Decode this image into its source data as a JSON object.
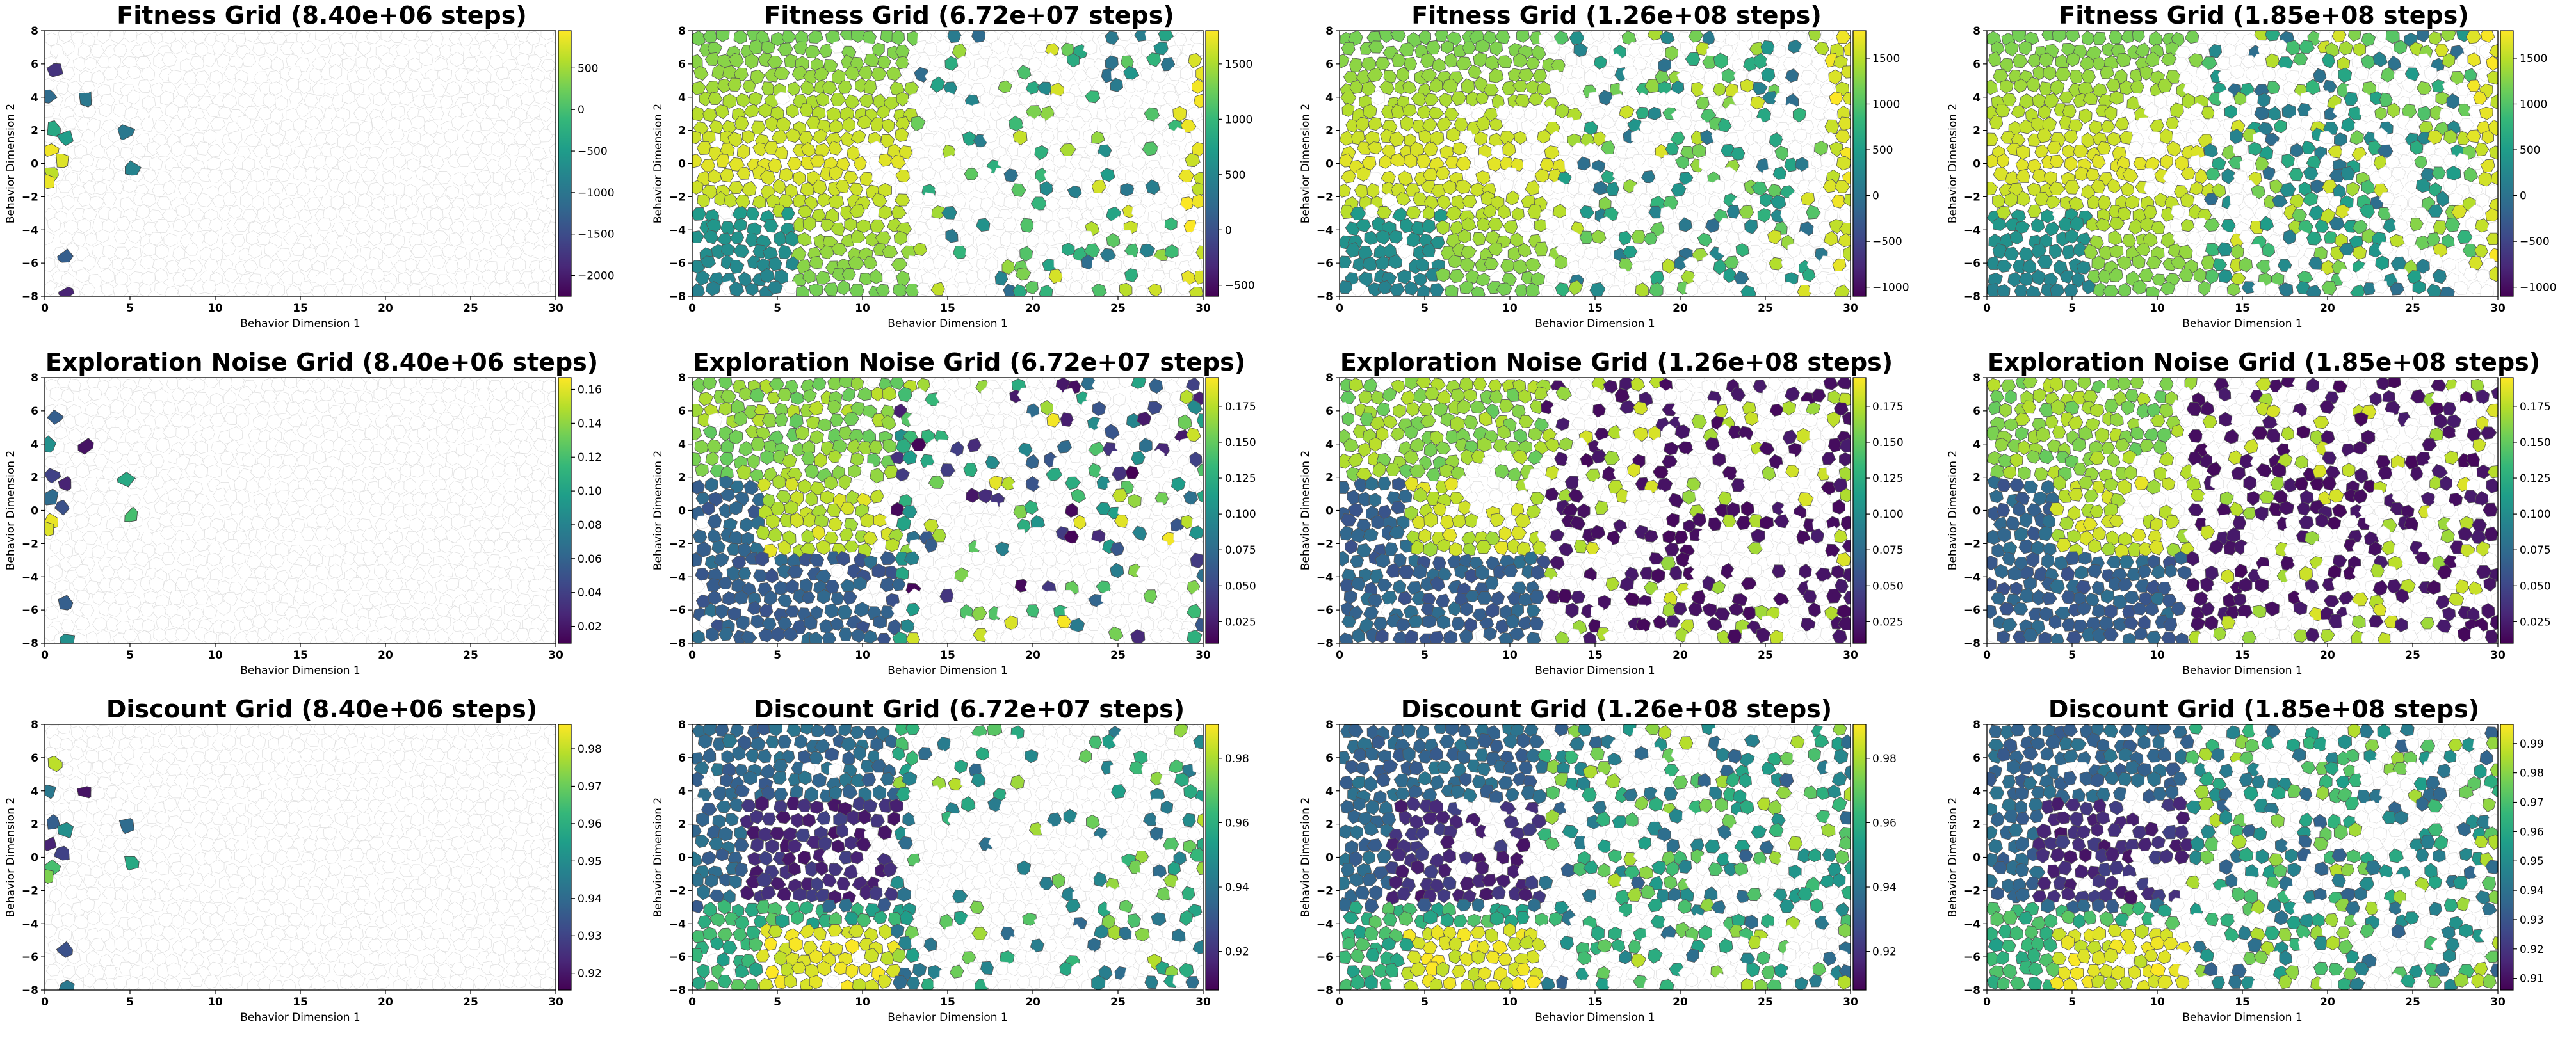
{
  "figure": {
    "row_names": [
      "Fitness Grid",
      "Exploration Noise Grid",
      "Discount Grid"
    ],
    "column_steps": [
      "8.40e+06",
      "6.72e+07",
      "1.26e+08",
      "1.85e+08"
    ]
  },
  "chart_data": [
    {
      "type": "heatmap",
      "title": "Fitness Grid (8.40e+06 steps)",
      "xlabel": "Behavior Dimension 1",
      "ylabel": "Behavior Dimension 2",
      "xlim": [
        0,
        30
      ],
      "ylim": [
        -8,
        8
      ],
      "xticks": [
        "0",
        "5",
        "10",
        "15",
        "20",
        "25",
        "30"
      ],
      "yticks": [
        "−8",
        "−6",
        "−4",
        "−2",
        "0",
        "2",
        "4",
        "6",
        "8"
      ],
      "colorbar": {
        "min": -2250,
        "max": 950,
        "ticks": [
          {
            "value": 500,
            "label": "500"
          },
          {
            "value": 0,
            "label": "0"
          },
          {
            "value": -500,
            "label": "−500"
          },
          {
            "value": -1000,
            "label": "−1000"
          },
          {
            "value": -1500,
            "label": "−1500"
          },
          {
            "value": -2000,
            "label": "−2000"
          }
        ]
      },
      "filled_region": "early"
    },
    {
      "type": "heatmap",
      "title": "Fitness Grid (6.72e+07 steps)",
      "xlabel": "Behavior Dimension 1",
      "ylabel": "Behavior Dimension 2",
      "xlim": [
        0,
        30
      ],
      "ylim": [
        -8,
        8
      ],
      "xticks": [
        "0",
        "5",
        "10",
        "15",
        "20",
        "25",
        "30"
      ],
      "yticks": [
        "−8",
        "−6",
        "−4",
        "−2",
        "0",
        "2",
        "4",
        "6",
        "8"
      ],
      "colorbar": {
        "min": -600,
        "max": 1800,
        "ticks": [
          {
            "value": 1500,
            "label": "1500"
          },
          {
            "value": 1000,
            "label": "1000"
          },
          {
            "value": 500,
            "label": "500"
          },
          {
            "value": 0,
            "label": "0"
          },
          {
            "value": -500,
            "label": "−500"
          }
        ]
      },
      "filled_region": "mid"
    },
    {
      "type": "heatmap",
      "title": "Fitness Grid (1.26e+08 steps)",
      "xlabel": "Behavior Dimension 1",
      "ylabel": "Behavior Dimension 2",
      "xlim": [
        0,
        30
      ],
      "ylim": [
        -8,
        8
      ],
      "xticks": [
        "0",
        "5",
        "10",
        "15",
        "20",
        "25",
        "30"
      ],
      "yticks": [
        "−8",
        "−6",
        "−4",
        "−2",
        "0",
        "2",
        "4",
        "6",
        "8"
      ],
      "colorbar": {
        "min": -1100,
        "max": 1800,
        "ticks": [
          {
            "value": 1500,
            "label": "1500"
          },
          {
            "value": 1000,
            "label": "1000"
          },
          {
            "value": 500,
            "label": "500"
          },
          {
            "value": 0,
            "label": "0"
          },
          {
            "value": -500,
            "label": "−500"
          },
          {
            "value": -1000,
            "label": "−1000"
          }
        ]
      },
      "filled_region": "late"
    },
    {
      "type": "heatmap",
      "title": "Fitness Grid (1.85e+08 steps)",
      "xlabel": "Behavior Dimension 1",
      "ylabel": "Behavior Dimension 2",
      "xlim": [
        0,
        30
      ],
      "ylim": [
        -8,
        8
      ],
      "xticks": [
        "0",
        "5",
        "10",
        "15",
        "20",
        "25",
        "30"
      ],
      "yticks": [
        "−8",
        "−6",
        "−4",
        "−2",
        "0",
        "2",
        "4",
        "6",
        "8"
      ],
      "colorbar": {
        "min": -1100,
        "max": 1800,
        "ticks": [
          {
            "value": 1500,
            "label": "1500"
          },
          {
            "value": 1000,
            "label": "1000"
          },
          {
            "value": 500,
            "label": "500"
          },
          {
            "value": 0,
            "label": "0"
          },
          {
            "value": -500,
            "label": "−500"
          },
          {
            "value": -1000,
            "label": "−1000"
          }
        ]
      },
      "filled_region": "latest"
    },
    {
      "type": "heatmap",
      "title": "Exploration Noise Grid (8.40e+06 steps)",
      "xlabel": "Behavior Dimension 1",
      "ylabel": "Behavior Dimension 2",
      "xlim": [
        0,
        30
      ],
      "ylim": [
        -8,
        8
      ],
      "xticks": [
        "0",
        "5",
        "10",
        "15",
        "20",
        "25",
        "30"
      ],
      "yticks": [
        "−8",
        "−6",
        "−4",
        "−2",
        "0",
        "2",
        "4",
        "6",
        "8"
      ],
      "colorbar": {
        "min": 0.01,
        "max": 0.167,
        "ticks": [
          {
            "value": 0.16,
            "label": "0.16"
          },
          {
            "value": 0.14,
            "label": "0.14"
          },
          {
            "value": 0.12,
            "label": "0.12"
          },
          {
            "value": 0.1,
            "label": "0.10"
          },
          {
            "value": 0.08,
            "label": "0.08"
          },
          {
            "value": 0.06,
            "label": "0.06"
          },
          {
            "value": 0.04,
            "label": "0.04"
          },
          {
            "value": 0.02,
            "label": "0.02"
          }
        ]
      },
      "filled_region": "early"
    },
    {
      "type": "heatmap",
      "title": "Exploration Noise Grid (6.72e+07 steps)",
      "xlabel": "Behavior Dimension 1",
      "ylabel": "Behavior Dimension 2",
      "xlim": [
        0,
        30
      ],
      "ylim": [
        -8,
        8
      ],
      "xticks": [
        "0",
        "5",
        "10",
        "15",
        "20",
        "25",
        "30"
      ],
      "yticks": [
        "−8",
        "−6",
        "−4",
        "−2",
        "0",
        "2",
        "4",
        "6",
        "8"
      ],
      "colorbar": {
        "min": 0.01,
        "max": 0.195,
        "ticks": [
          {
            "value": 0.175,
            "label": "0.175"
          },
          {
            "value": 0.15,
            "label": "0.150"
          },
          {
            "value": 0.125,
            "label": "0.125"
          },
          {
            "value": 0.1,
            "label": "0.100"
          },
          {
            "value": 0.075,
            "label": "0.075"
          },
          {
            "value": 0.05,
            "label": "0.050"
          },
          {
            "value": 0.025,
            "label": "0.025"
          }
        ]
      },
      "filled_region": "mid"
    },
    {
      "type": "heatmap",
      "title": "Exploration Noise Grid (1.26e+08 steps)",
      "xlabel": "Behavior Dimension 1",
      "ylabel": "Behavior Dimension 2",
      "xlim": [
        0,
        30
      ],
      "ylim": [
        -8,
        8
      ],
      "xticks": [
        "0",
        "5",
        "10",
        "15",
        "20",
        "25",
        "30"
      ],
      "yticks": [
        "−8",
        "−6",
        "−4",
        "−2",
        "0",
        "2",
        "4",
        "6",
        "8"
      ],
      "colorbar": {
        "min": 0.01,
        "max": 0.195,
        "ticks": [
          {
            "value": 0.175,
            "label": "0.175"
          },
          {
            "value": 0.15,
            "label": "0.150"
          },
          {
            "value": 0.125,
            "label": "0.125"
          },
          {
            "value": 0.1,
            "label": "0.100"
          },
          {
            "value": 0.075,
            "label": "0.075"
          },
          {
            "value": 0.05,
            "label": "0.050"
          },
          {
            "value": 0.025,
            "label": "0.025"
          }
        ]
      },
      "filled_region": "late"
    },
    {
      "type": "heatmap",
      "title": "Exploration Noise Grid (1.85e+08 steps)",
      "xlabel": "Behavior Dimension 1",
      "ylabel": "Behavior Dimension 2",
      "xlim": [
        0,
        30
      ],
      "ylim": [
        -8,
        8
      ],
      "xticks": [
        "0",
        "5",
        "10",
        "15",
        "20",
        "25",
        "30"
      ],
      "yticks": [
        "−8",
        "−6",
        "−4",
        "−2",
        "0",
        "2",
        "4",
        "6",
        "8"
      ],
      "colorbar": {
        "min": 0.01,
        "max": 0.195,
        "ticks": [
          {
            "value": 0.175,
            "label": "0.175"
          },
          {
            "value": 0.15,
            "label": "0.150"
          },
          {
            "value": 0.125,
            "label": "0.125"
          },
          {
            "value": 0.1,
            "label": "0.100"
          },
          {
            "value": 0.075,
            "label": "0.075"
          },
          {
            "value": 0.05,
            "label": "0.050"
          },
          {
            "value": 0.025,
            "label": "0.025"
          }
        ]
      },
      "filled_region": "latest"
    },
    {
      "type": "heatmap",
      "title": "Discount Grid (8.40e+06 steps)",
      "xlabel": "Behavior Dimension 1",
      "ylabel": "Behavior Dimension 2",
      "xlim": [
        0,
        30
      ],
      "ylim": [
        -8,
        8
      ],
      "xticks": [
        "0",
        "5",
        "10",
        "15",
        "20",
        "25",
        "30"
      ],
      "yticks": [
        "−8",
        "−6",
        "−4",
        "−2",
        "0",
        "2",
        "4",
        "6",
        "8"
      ],
      "colorbar": {
        "min": 0.9155,
        "max": 0.9865,
        "ticks": [
          {
            "value": 0.98,
            "label": "0.98"
          },
          {
            "value": 0.97,
            "label": "0.97"
          },
          {
            "value": 0.96,
            "label": "0.96"
          },
          {
            "value": 0.95,
            "label": "0.95"
          },
          {
            "value": 0.94,
            "label": "0.94"
          },
          {
            "value": 0.93,
            "label": "0.93"
          },
          {
            "value": 0.92,
            "label": "0.92"
          }
        ]
      },
      "filled_region": "early"
    },
    {
      "type": "heatmap",
      "title": "Discount Grid (6.72e+07 steps)",
      "xlabel": "Behavior Dimension 1",
      "ylabel": "Behavior Dimension 2",
      "xlim": [
        0,
        30
      ],
      "ylim": [
        -8,
        8
      ],
      "xticks": [
        "0",
        "5",
        "10",
        "15",
        "20",
        "25",
        "30"
      ],
      "yticks": [
        "−8",
        "−6",
        "−4",
        "−2",
        "0",
        "2",
        "4",
        "6",
        "8"
      ],
      "colorbar": {
        "min": 0.908,
        "max": 0.9905,
        "ticks": [
          {
            "value": 0.98,
            "label": "0.98"
          },
          {
            "value": 0.96,
            "label": "0.96"
          },
          {
            "value": 0.94,
            "label": "0.94"
          },
          {
            "value": 0.92,
            "label": "0.92"
          }
        ]
      },
      "filled_region": "mid"
    },
    {
      "type": "heatmap",
      "title": "Discount Grid (1.26e+08 steps)",
      "xlabel": "Behavior Dimension 1",
      "ylabel": "Behavior Dimension 2",
      "xlim": [
        0,
        30
      ],
      "ylim": [
        -8,
        8
      ],
      "xticks": [
        "0",
        "5",
        "10",
        "15",
        "20",
        "25",
        "30"
      ],
      "yticks": [
        "−8",
        "−6",
        "−4",
        "−2",
        "0",
        "2",
        "4",
        "6",
        "8"
      ],
      "colorbar": {
        "min": 0.908,
        "max": 0.9905,
        "ticks": [
          {
            "value": 0.98,
            "label": "0.98"
          },
          {
            "value": 0.96,
            "label": "0.96"
          },
          {
            "value": 0.94,
            "label": "0.94"
          },
          {
            "value": 0.92,
            "label": "0.92"
          }
        ]
      },
      "filled_region": "late"
    },
    {
      "type": "heatmap",
      "title": "Discount Grid (1.85e+08 steps)",
      "xlabel": "Behavior Dimension 1",
      "ylabel": "Behavior Dimension 2",
      "xlim": [
        0,
        30
      ],
      "ylim": [
        -8,
        8
      ],
      "xticks": [
        "0",
        "5",
        "10",
        "15",
        "20",
        "25",
        "30"
      ],
      "yticks": [
        "−8",
        "−6",
        "−4",
        "−2",
        "0",
        "2",
        "4",
        "6",
        "8"
      ],
      "colorbar": {
        "min": 0.906,
        "max": 0.9965,
        "ticks": [
          {
            "value": 0.99,
            "label": "0.99"
          },
          {
            "value": 0.98,
            "label": "0.98"
          },
          {
            "value": 0.97,
            "label": "0.97"
          },
          {
            "value": 0.96,
            "label": "0.96"
          },
          {
            "value": 0.95,
            "label": "0.95"
          },
          {
            "value": 0.94,
            "label": "0.94"
          },
          {
            "value": 0.93,
            "label": "0.93"
          },
          {
            "value": 0.92,
            "label": "0.92"
          },
          {
            "value": 0.91,
            "label": "0.91"
          }
        ]
      },
      "filled_region": "latest"
    }
  ],
  "colors": {
    "empty_cell": "#ffffff",
    "cell_edge": "#dddddd",
    "viridis": [
      "#440154",
      "#482878",
      "#3e4989",
      "#31688e",
      "#26828e",
      "#1f9e89",
      "#35b779",
      "#6ece58",
      "#b5de2b",
      "#fde725"
    ]
  }
}
